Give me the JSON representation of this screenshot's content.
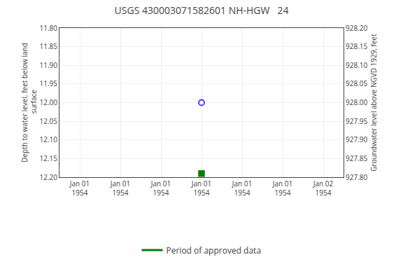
{
  "chart_data": {
    "type": "scatter",
    "title": "USGS 430003071582601 NH-HGW   24",
    "y_label": "Depth to water level, feet below land\n surface",
    "y2_label": "Groundwater level above NGVD 1929, feet",
    "categories": [
      "Jan 01\n1954",
      "Jan 01\n1954",
      "Jan 01\n1954",
      "Jan 01\n1954",
      "Jan 01\n1954",
      "Jan 01\n1954",
      "Jan 02\n1954"
    ],
    "series": [
      {
        "color": "blue",
        "marker": "circle-open",
        "values": [
          null,
          null,
          null,
          12.0,
          null,
          null,
          null
        ]
      },
      {
        "color": "green",
        "marker": "square",
        "values": [
          null,
          null,
          null,
          12.19,
          null,
          null,
          null
        ]
      },
      {
        "name": "Period of approved data",
        "color": "green",
        "type": "line",
        "line_style": "solid",
        "axis": "y2",
        "values": [
          null,
          null,
          null,
          null,
          null,
          null,
          null
        ]
      }
    ],
    "ylim": [
      12.2,
      11.8
    ],
    "yticks": [
      {
        "value": 11.8,
        "label": "11.80"
      },
      11.85,
      {
        "value": 11.9,
        "label": "11.90"
      },
      11.95,
      {
        "value": 12.0,
        "label": "12.00"
      },
      12.05,
      {
        "value": 12.1,
        "label": "12.10"
      },
      12.15,
      {
        "value": 12.2,
        "label": "12.20"
      }
    ],
    "y2lim": [
      927.8,
      928.2
    ],
    "y2ticks": [
      {
        "value": 928.2,
        "label": "928.20"
      },
      928.15,
      {
        "value": 928.1,
        "label": "928.10"
      },
      928.05,
      {
        "value": 928.0,
        "label": "928.00"
      },
      927.95,
      {
        "value": 927.9,
        "label": "927.90"
      },
      927.85,
      {
        "value": 927.8,
        "label": "927.80"
      }
    ],
    "grid": true,
    "legend": "bottom"
  }
}
